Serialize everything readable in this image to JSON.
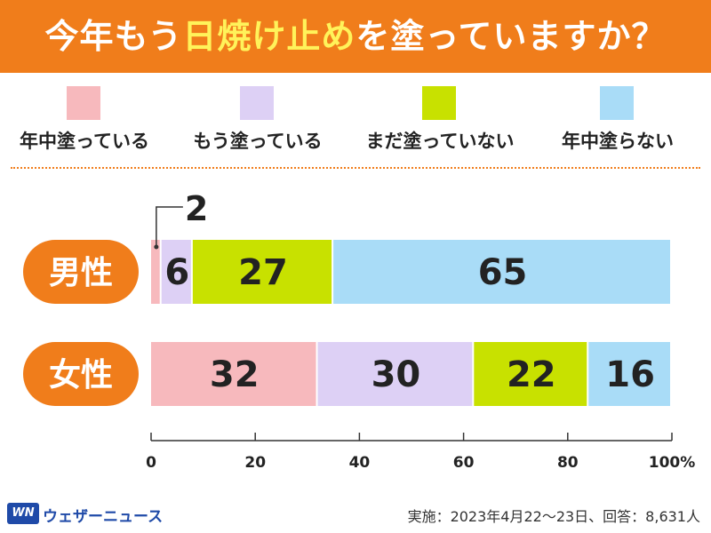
{
  "title": {
    "prefix": "今年もう",
    "highlight": "日焼け止め",
    "suffix": "を塗っていますか？"
  },
  "chart_data": {
    "type": "bar",
    "orientation": "horizontal",
    "stacked": true,
    "categories": [
      "男性",
      "女性"
    ],
    "series": [
      {
        "name": "年中塗っている",
        "color": "#f7b9bd",
        "values": [
          2,
          32
        ]
      },
      {
        "name": "もう塗っている",
        "color": "#ddd0f5",
        "values": [
          6,
          30
        ]
      },
      {
        "name": "まだ塗っていない",
        "color": "#c8e100",
        "values": [
          27,
          22
        ]
      },
      {
        "name": "年中塗らない",
        "color": "#a9dcf7",
        "values": [
          65,
          16
        ]
      }
    ],
    "xlim": [
      0,
      100
    ],
    "ticks": [
      "0",
      "20",
      "40",
      "60",
      "80",
      "100%"
    ],
    "legend_position": "top",
    "category_label_color": "#f07d1b"
  },
  "footer": {
    "logo_mark": "WN",
    "logo_text": "ウェザーニュース",
    "note": "実施：2023年4月22～23日、回答：8,631人"
  }
}
